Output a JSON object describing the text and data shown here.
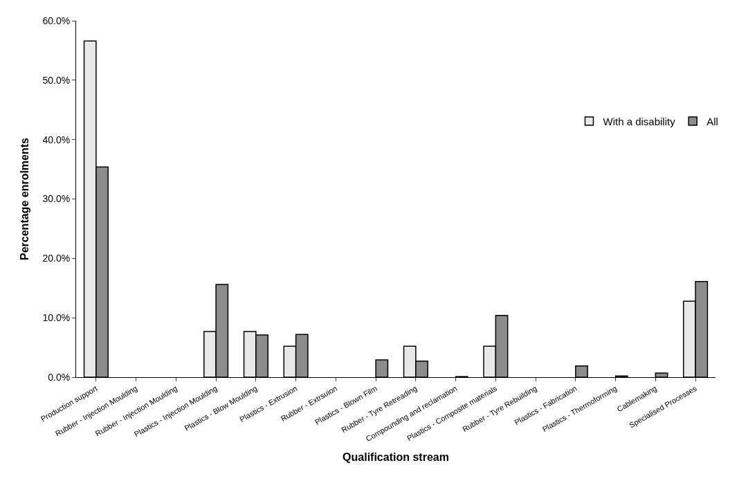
{
  "chart_data": {
    "type": "bar",
    "xlabel": "Qualification stream",
    "ylabel": "Percentage enrolments",
    "categories": [
      "Production support",
      "Rubber - Injection Moulding",
      "Rubber - Injection Moulding",
      "Plastics - Injection Moulding",
      "Plastics - Blow Moulding",
      "Plastics - Extrusion",
      "Rubber - Extrsuion",
      "Plastics - Blown Film",
      "Rubber - Tyre Retreading",
      "Compounding and reclamation",
      "Plastics - Composite materials",
      "Rubber - Tyre Rebuilding",
      "Plastics - Fabrication",
      "Plastics - Thermoforming",
      "Cablemaking",
      "Specialised Processes"
    ],
    "series": [
      {
        "name": "With a disability",
        "color": "#e8e8e8",
        "values": [
          56.6,
          null,
          null,
          7.7,
          7.7,
          5.2,
          null,
          null,
          5.2,
          null,
          5.2,
          null,
          null,
          null,
          null,
          12.8
        ]
      },
      {
        "name": "All",
        "color": "#8c8c8c",
        "values": [
          35.4,
          null,
          null,
          15.6,
          7.1,
          7.2,
          null,
          2.9,
          2.7,
          0.1,
          10.4,
          null,
          1.9,
          0.2,
          0.7,
          16.1
        ]
      }
    ],
    "ylim": [
      0,
      60
    ],
    "yticks": [
      {
        "value": 0,
        "label": "0.0%"
      },
      {
        "value": 10,
        "label": "10.0%"
      },
      {
        "value": 20,
        "label": "20.0%"
      },
      {
        "value": 30,
        "label": "30.0%"
      },
      {
        "value": 40,
        "label": "40.0%"
      },
      {
        "value": 50,
        "label": "50.0%"
      },
      {
        "value": 60,
        "label": "60.0%"
      }
    ],
    "legend": "right"
  }
}
